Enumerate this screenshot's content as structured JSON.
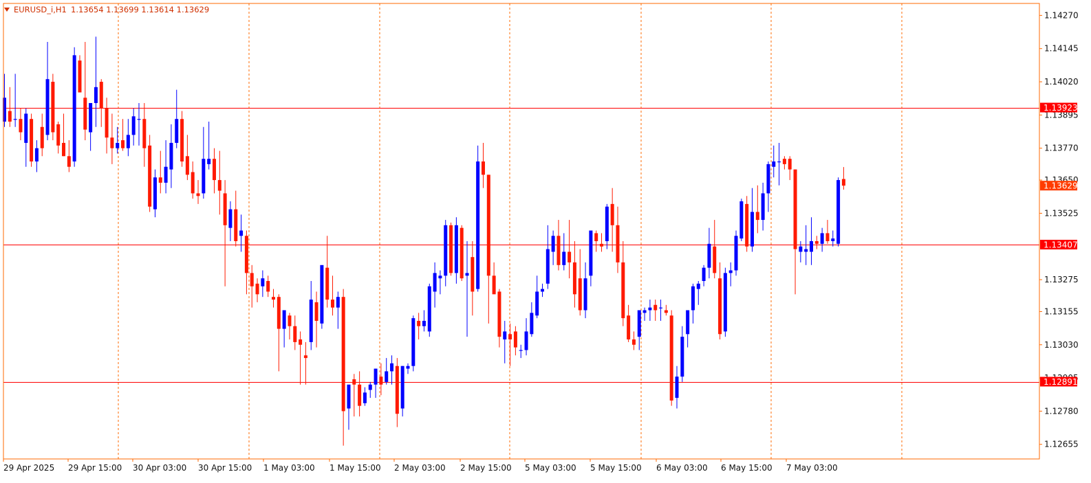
{
  "header": {
    "symbol": "EURUSD_i,H1",
    "ohlc": "1.13654 1.13699 1.13614 1.13629"
  },
  "colors": {
    "background": "#ffffff",
    "frame": "#ff6a00",
    "grid": "#ff6a00",
    "bull": "#0000ff",
    "bear": "#ff1a00",
    "hline": "#ff0000",
    "current_price_tag": "#ff3c00"
  },
  "chart_data": {
    "type": "candlestick",
    "timeframe": "H1",
    "grid": true,
    "ylim": [
      1.266,
      1.14315
    ],
    "y_ticks": [
      "1.14270",
      "1.14145",
      "1.14020",
      "1.13895",
      "1.13770",
      "1.13650",
      "1.13525",
      "1.13275",
      "1.13155",
      "1.13030",
      "1.12905",
      "1.12780",
      "1.12655"
    ],
    "x_ticks": [
      "29 Apr 2025",
      "29 Apr 15:00",
      "30 Apr 03:00",
      "30 Apr 15:00",
      "1 May 03:00",
      "1 May 15:00",
      "2 May 03:00",
      "2 May 15:00",
      "5 May 03:00",
      "5 May 15:00",
      "6 May 03:00",
      "6 May 15:00",
      "7 May 03:00"
    ],
    "horizontal_lines": [
      {
        "label": "1.13923",
        "value": 1.13923
      },
      {
        "label": "1.13407",
        "value": 1.13407
      },
      {
        "label": "1.12891",
        "value": 1.12891
      }
    ],
    "current_price": {
      "label": "1.13629",
      "value": 1.13629
    },
    "candles": [
      [
        1.1387,
        1.1405,
        1.1385,
        1.1396
      ],
      [
        1.1391,
        1.14,
        1.1385,
        1.1387
      ],
      [
        1.1388,
        1.1405,
        1.1385,
        1.1388
      ],
      [
        1.1388,
        1.1392,
        1.138,
        1.1383
      ],
      [
        1.1379,
        1.1392,
        1.137,
        1.139
      ],
      [
        1.1388,
        1.139,
        1.137,
        1.1372
      ],
      [
        1.1372,
        1.138,
        1.1368,
        1.1377
      ],
      [
        1.1385,
        1.139,
        1.1374,
        1.1377
      ],
      [
        1.1382,
        1.1417,
        1.138,
        1.1403
      ],
      [
        1.1402,
        1.1405,
        1.138,
        1.1383
      ],
      [
        1.1386,
        1.1387,
        1.1375,
        1.1378
      ],
      [
        1.1379,
        1.139,
        1.1374,
        1.1374
      ],
      [
        1.1374,
        1.138,
        1.1368,
        1.137
      ],
      [
        1.1372,
        1.1415,
        1.137,
        1.1412
      ],
      [
        1.141,
        1.1412,
        1.1398,
        1.1398
      ],
      [
        1.1396,
        1.1417,
        1.138,
        1.1384
      ],
      [
        1.1383,
        1.139,
        1.1376,
        1.1394
      ],
      [
        1.1394,
        1.1419,
        1.1385,
        1.14
      ],
      [
        1.1402,
        1.1403,
        1.1385,
        1.1392
      ],
      [
        1.1392,
        1.1396,
        1.1375,
        1.1381
      ],
      [
        1.1381,
        1.139,
        1.1371,
        1.1377
      ],
      [
        1.1377,
        1.1385,
        1.1375,
        1.1379
      ],
      [
        1.138,
        1.1388,
        1.1376,
        1.1377
      ],
      [
        1.1377,
        1.1388,
        1.1374,
        1.1382
      ],
      [
        1.1382,
        1.1392,
        1.1378,
        1.1389
      ],
      [
        1.1388,
        1.1394,
        1.1378,
        1.1388
      ],
      [
        1.1388,
        1.1394,
        1.137,
        1.1377
      ],
      [
        1.1378,
        1.1382,
        1.1353,
        1.1355
      ],
      [
        1.1354,
        1.1369,
        1.1351,
        1.1366
      ],
      [
        1.1366,
        1.1376,
        1.136,
        1.1364
      ],
      [
        1.1364,
        1.138,
        1.136,
        1.137
      ],
      [
        1.1369,
        1.1386,
        1.1362,
        1.1379
      ],
      [
        1.1379,
        1.1399,
        1.1377,
        1.1388
      ],
      [
        1.1388,
        1.1391,
        1.137,
        1.1372
      ],
      [
        1.1374,
        1.1382,
        1.1365,
        1.1367
      ],
      [
        1.1368,
        1.1372,
        1.1358,
        1.136
      ],
      [
        1.136,
        1.1365,
        1.1356,
        1.1359
      ],
      [
        1.136,
        1.1385,
        1.1358,
        1.1373
      ],
      [
        1.1371,
        1.1387,
        1.1369,
        1.1373
      ],
      [
        1.1373,
        1.1377,
        1.136,
        1.1365
      ],
      [
        1.1365,
        1.1376,
        1.1352,
        1.1361
      ],
      [
        1.136,
        1.1365,
        1.1325,
        1.1348
      ],
      [
        1.1347,
        1.1357,
        1.1342,
        1.1354
      ],
      [
        1.1354,
        1.1361,
        1.134,
        1.1342
      ],
      [
        1.1344,
        1.1352,
        1.1338,
        1.1346
      ],
      [
        1.1344,
        1.1346,
        1.1322,
        1.133
      ],
      [
        1.133,
        1.1333,
        1.1317,
        1.1325
      ],
      [
        1.1326,
        1.1328,
        1.1319,
        1.1322
      ],
      [
        1.1325,
        1.1331,
        1.1321,
        1.1328
      ],
      [
        1.1327,
        1.1329,
        1.1321,
        1.1323
      ],
      [
        1.1321,
        1.1324,
        1.1317,
        1.132
      ],
      [
        1.1321,
        1.1322,
        1.1293,
        1.1309
      ],
      [
        1.1309,
        1.1316,
        1.1302,
        1.1316
      ],
      [
        1.1314,
        1.1315,
        1.1305,
        1.131
      ],
      [
        1.131,
        1.1314,
        1.1301,
        1.1304
      ],
      [
        1.1305,
        1.1308,
        1.1288,
        1.1303
      ],
      [
        1.1299,
        1.1304,
        1.1288,
        1.1298
      ],
      [
        1.1304,
        1.1327,
        1.1301,
        1.132
      ],
      [
        1.1319,
        1.1323,
        1.1302,
        1.1312
      ],
      [
        1.1311,
        1.1332,
        1.1309,
        1.1333
      ],
      [
        1.1332,
        1.1344,
        1.1317,
        1.132
      ],
      [
        1.132,
        1.1329,
        1.1314,
        1.1317
      ],
      [
        1.1317,
        1.1323,
        1.1309,
        1.1321
      ],
      [
        1.1321,
        1.1324,
        1.1265,
        1.1278
      ],
      [
        1.1279,
        1.1287,
        1.1271,
        1.1288
      ],
      [
        1.129,
        1.1292,
        1.1276,
        1.1288
      ],
      [
        1.1288,
        1.1293,
        1.1276,
        1.128
      ],
      [
        1.1281,
        1.1287,
        1.128,
        1.1285
      ],
      [
        1.1286,
        1.1289,
        1.1283,
        1.1288
      ],
      [
        1.1288,
        1.1294,
        1.1283,
        1.1294
      ],
      [
        1.1291,
        1.1296,
        1.1284,
        1.1288
      ],
      [
        1.1289,
        1.1298,
        1.1288,
        1.1293
      ],
      [
        1.1293,
        1.1299,
        1.1288,
        1.1296
      ],
      [
        1.1295,
        1.1298,
        1.1272,
        1.1277
      ],
      [
        1.1279,
        1.1295,
        1.1276,
        1.1295
      ],
      [
        1.1294,
        1.1296,
        1.1292,
        1.1295
      ],
      [
        1.1295,
        1.1314,
        1.1293,
        1.1313
      ],
      [
        1.1312,
        1.1315,
        1.1305,
        1.131
      ],
      [
        1.131,
        1.1316,
        1.1308,
        1.1312
      ],
      [
        1.1308,
        1.1326,
        1.1306,
        1.1325
      ],
      [
        1.1323,
        1.1334,
        1.1317,
        1.133
      ],
      [
        1.1328,
        1.1331,
        1.1322,
        1.1329
      ],
      [
        1.1329,
        1.135,
        1.1325,
        1.1348
      ],
      [
        1.1348,
        1.1349,
        1.1329,
        1.133
      ],
      [
        1.133,
        1.1351,
        1.1326,
        1.1348
      ],
      [
        1.1347,
        1.1348,
        1.1327,
        1.1328
      ],
      [
        1.1329,
        1.1342,
        1.1306,
        1.133
      ],
      [
        1.1336,
        1.1342,
        1.1314,
        1.1323
      ],
      [
        1.1324,
        1.1378,
        1.1323,
        1.1372
      ],
      [
        1.1372,
        1.1379,
        1.1362,
        1.1367
      ],
      [
        1.1367,
        1.1367,
        1.1311,
        1.1329
      ],
      [
        1.1329,
        1.1334,
        1.1323,
        1.1322
      ],
      [
        1.1323,
        1.1324,
        1.1302,
        1.1306
      ],
      [
        1.1305,
        1.1312,
        1.1296,
        1.1308
      ],
      [
        1.1307,
        1.1311,
        1.1295,
        1.1305
      ],
      [
        1.1308,
        1.131,
        1.1299,
        1.1302
      ],
      [
        1.1301,
        1.1303,
        1.1298,
        1.1301
      ],
      [
        1.1301,
        1.1313,
        1.1299,
        1.1308
      ],
      [
        1.1307,
        1.1319,
        1.1306,
        1.1315
      ],
      [
        1.1314,
        1.1329,
        1.1313,
        1.1323
      ],
      [
        1.1323,
        1.1326,
        1.1321,
        1.1324
      ],
      [
        1.1326,
        1.1348,
        1.1324,
        1.1339
      ],
      [
        1.1338,
        1.1346,
        1.1333,
        1.1344
      ],
      [
        1.1344,
        1.135,
        1.1331,
        1.1333
      ],
      [
        1.1333,
        1.1345,
        1.1331,
        1.1338
      ],
      [
        1.1338,
        1.135,
        1.1328,
        1.1334
      ],
      [
        1.1334,
        1.1342,
        1.1317,
        1.1322
      ],
      [
        1.1328,
        1.1339,
        1.1314,
        1.1316
      ],
      [
        1.1316,
        1.1334,
        1.1313,
        1.1328
      ],
      [
        1.1329,
        1.1345,
        1.1325,
        1.1346
      ],
      [
        1.1345,
        1.1346,
        1.1338,
        1.1342
      ],
      [
        1.1341,
        1.1345,
        1.1338,
        1.134
      ],
      [
        1.1342,
        1.1356,
        1.1339,
        1.1355
      ],
      [
        1.1356,
        1.1362,
        1.1338,
        1.1348
      ],
      [
        1.1348,
        1.1355,
        1.133,
        1.1334
      ],
      [
        1.1334,
        1.1342,
        1.131,
        1.1313
      ],
      [
        1.1314,
        1.1318,
        1.1304,
        1.1305
      ],
      [
        1.1305,
        1.1308,
        1.1301,
        1.1303
      ],
      [
        1.1306,
        1.1313,
        1.1301,
        1.1316
      ],
      [
        1.1315,
        1.1317,
        1.1312,
        1.1316
      ],
      [
        1.1316,
        1.132,
        1.1312,
        1.1317
      ],
      [
        1.1318,
        1.132,
        1.1312,
        1.1316
      ],
      [
        1.1317,
        1.132,
        1.1312,
        1.1317
      ],
      [
        1.1316,
        1.1318,
        1.1314,
        1.1315
      ],
      [
        1.1314,
        1.1316,
        1.128,
        1.1282
      ],
      [
        1.1283,
        1.1295,
        1.1279,
        1.1291
      ],
      [
        1.1291,
        1.131,
        1.1289,
        1.1306
      ],
      [
        1.1307,
        1.1315,
        1.1302,
        1.1316
      ],
      [
        1.1316,
        1.1326,
        1.1311,
        1.1325
      ],
      [
        1.1324,
        1.1327,
        1.1318,
        1.1326
      ],
      [
        1.1327,
        1.1333,
        1.1325,
        1.1332
      ],
      [
        1.1332,
        1.1347,
        1.1328,
        1.1341
      ],
      [
        1.134,
        1.135,
        1.1328,
        1.133
      ],
      [
        1.1328,
        1.1334,
        1.1305,
        1.1307
      ],
      [
        1.1308,
        1.1332,
        1.1306,
        1.133
      ],
      [
        1.133,
        1.1334,
        1.1325,
        1.1331
      ],
      [
        1.1331,
        1.1346,
        1.1329,
        1.1344
      ],
      [
        1.1343,
        1.1358,
        1.1342,
        1.1357
      ],
      [
        1.1356,
        1.1359,
        1.1338,
        1.134
      ],
      [
        1.134,
        1.1362,
        1.1338,
        1.1353
      ],
      [
        1.1353,
        1.1363,
        1.1345,
        1.135
      ],
      [
        1.135,
        1.1364,
        1.1346,
        1.136
      ],
      [
        1.136,
        1.1372,
        1.1353,
        1.1371
      ],
      [
        1.137,
        1.1378,
        1.1366,
        1.1372
      ],
      [
        1.1372,
        1.1379,
        1.1363,
        1.1372
      ],
      [
        1.1373,
        1.1374,
        1.1369,
        1.1371
      ],
      [
        1.1373,
        1.1374,
        1.1365,
        1.1369
      ],
      [
        1.1369,
        1.1369,
        1.1322,
        1.1339
      ],
      [
        1.1338,
        1.1342,
        1.1334,
        1.134
      ],
      [
        1.1338,
        1.1348,
        1.1333,
        1.1339
      ],
      [
        1.1338,
        1.1351,
        1.1333,
        1.1342
      ],
      [
        1.1342,
        1.1344,
        1.1339,
        1.1341
      ],
      [
        1.1341,
        1.1347,
        1.1338,
        1.1345
      ],
      [
        1.1345,
        1.135,
        1.1341,
        1.1342
      ],
      [
        1.1342,
        1.1346,
        1.134,
        1.1343
      ],
      [
        1.1341,
        1.1366,
        1.134,
        1.1365
      ],
      [
        1.13654,
        1.13699,
        1.13614,
        1.13629
      ]
    ]
  }
}
